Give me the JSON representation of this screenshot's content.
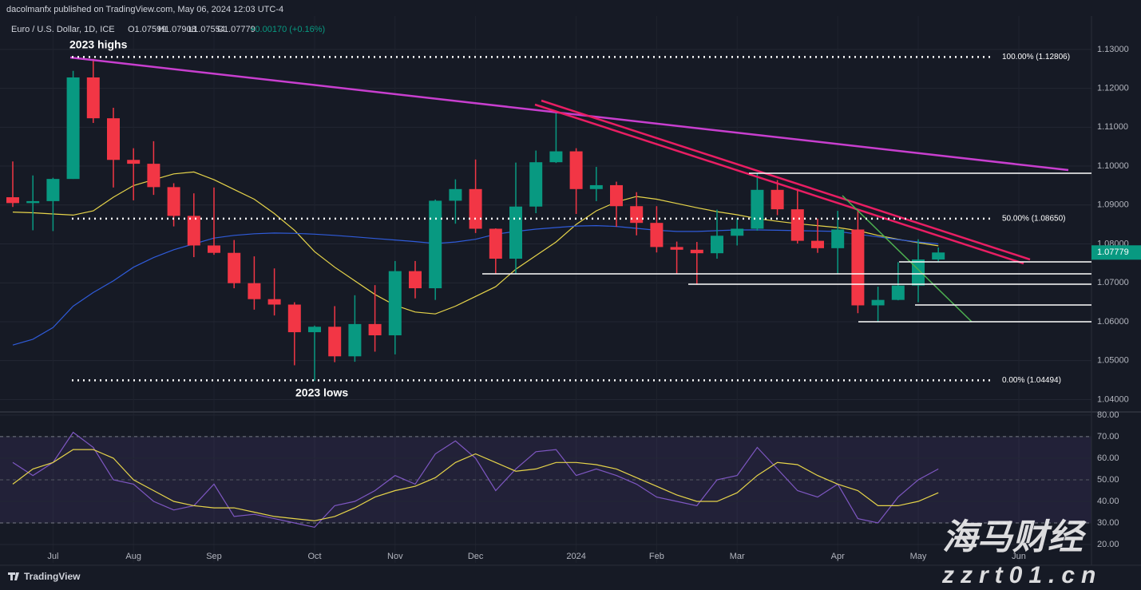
{
  "header": {
    "publisher": "dacolmanfx published on TradingView.com, May 06, 2024 12:03 UTC-4",
    "symbol": "Euro / U.S. Dollar, 1D, ICE",
    "ohlc": [
      "O1.07599",
      "H1.07908",
      "L1.07554",
      "C1.07779"
    ],
    "change": "+0.00170 (+0.16%)"
  },
  "footer": {
    "brand": "TradingView"
  },
  "watermark": {
    "main": "海马财经",
    "url": "zzrt01.cn"
  },
  "chart_data": [
    {
      "type": "candlestick",
      "up_color": "#089981",
      "down_color": "#f23645",
      "categories": [
        null,
        null,
        "Jul",
        null,
        null,
        null,
        "Aug",
        null,
        null,
        null,
        "Sep",
        null,
        null,
        null,
        null,
        "Oct",
        null,
        null,
        null,
        "Nov",
        null,
        null,
        null,
        "Dec",
        null,
        null,
        null,
        null,
        "2024",
        null,
        null,
        null,
        "Feb",
        null,
        null,
        null,
        "Mar",
        null,
        null,
        null,
        null,
        "Apr",
        null,
        null,
        null,
        "May",
        null,
        null,
        null,
        null,
        "Jun"
      ],
      "open": [
        1.092,
        1.0905,
        1.091,
        1.0967,
        1.1228,
        1.1123,
        1.1016,
        1.1006,
        1.0946,
        1.0872,
        1.0796,
        1.0777,
        1.0699,
        1.0658,
        1.0644,
        1.0573,
        1.0587,
        1.0511,
        1.0594,
        1.0565,
        1.073,
        1.0686,
        1.0911,
        1.0941,
        1.0839,
        1.0762,
        1.0896,
        1.101,
        1.1038,
        1.0941,
        1.0951,
        1.0897,
        1.0854,
        1.0792,
        1.0785,
        1.0776,
        1.0821,
        1.0839,
        1.0939,
        1.0889,
        1.0808,
        1.0789,
        1.0837,
        1.0642,
        1.0656,
        1.0693,
        1.07599,
        null,
        null,
        null,
        null
      ],
      "high": [
        1.1012,
        1.0976,
        1.097,
        1.1245,
        1.1276,
        1.115,
        1.1046,
        1.1064,
        1.0956,
        1.093,
        1.0945,
        1.081,
        1.0768,
        1.0737,
        1.065,
        1.059,
        1.064,
        1.0668,
        1.0694,
        1.0756,
        1.0756,
        1.0914,
        1.0966,
        1.1017,
        1.084,
        1.1009,
        1.104,
        1.114,
        1.1046,
        1.0998,
        1.096,
        1.0933,
        1.0897,
        1.0806,
        1.0805,
        1.0888,
        1.0866,
        1.0981,
        1.0964,
        1.0942,
        1.0865,
        1.0885,
        1.0885,
        1.069,
        1.0753,
        1.0812,
        1.07908,
        null,
        null,
        null,
        null
      ],
      "low": [
        1.0895,
        1.0835,
        1.0833,
        1.0967,
        1.1111,
        1.0945,
        1.0912,
        1.0926,
        1.0845,
        1.0766,
        1.0772,
        1.0686,
        1.0631,
        1.0616,
        1.0488,
        1.0448,
        1.0496,
        1.0497,
        1.0523,
        1.0516,
        1.066,
        1.0656,
        1.0852,
        1.0828,
        1.0723,
        1.0724,
        1.0879,
        1.1008,
        1.0877,
        1.091,
        1.0844,
        1.0822,
        1.0778,
        1.0722,
        1.0695,
        1.0762,
        1.0796,
        1.0834,
        1.0874,
        1.0801,
        1.0777,
        1.0724,
        1.0622,
        1.0601,
        1.0655,
        1.065,
        1.07554,
        null,
        null,
        null,
        null
      ],
      "close": [
        1.0905,
        1.091,
        1.0967,
        1.1228,
        1.1123,
        1.1016,
        1.1006,
        1.0946,
        1.0872,
        1.0796,
        1.0777,
        1.0699,
        1.0658,
        1.0644,
        1.0573,
        1.0587,
        1.0511,
        1.0594,
        1.0565,
        1.073,
        1.0686,
        1.0911,
        1.0941,
        1.0839,
        1.0762,
        1.0896,
        1.101,
        1.1038,
        1.0941,
        1.0951,
        1.0897,
        1.0854,
        1.0792,
        1.0785,
        1.0776,
        1.0821,
        1.0839,
        1.0939,
        1.0889,
        1.0808,
        1.0789,
        1.0837,
        1.0642,
        1.0656,
        1.0693,
        1.076,
        1.07779,
        null,
        null,
        null,
        null
      ],
      "lines": [
        {
          "color": "#e6d44a",
          "values": [
            1.0882,
            1.088,
            1.0877,
            1.0874,
            1.0885,
            1.092,
            1.095,
            1.0965,
            1.098,
            1.0985,
            1.0965,
            1.094,
            1.0915,
            1.0878,
            1.0835,
            1.078,
            1.074,
            1.0705,
            1.067,
            1.0642,
            1.0625,
            1.062,
            1.064,
            1.0665,
            1.069,
            1.0735,
            1.077,
            1.0805,
            1.085,
            1.0885,
            1.0908,
            1.0922,
            1.0915,
            1.0904,
            1.0893,
            1.0883,
            1.0875,
            1.0865,
            1.0858,
            1.0852,
            1.0847,
            1.0842,
            1.0834,
            1.0822,
            1.0812,
            1.0803,
            1.0795,
            null,
            null,
            null,
            null
          ]
        },
        {
          "color": "#2f5bd9",
          "values": [
            1.054,
            1.0555,
            1.0585,
            1.064,
            1.0675,
            1.0705,
            1.074,
            1.0765,
            1.0785,
            1.08,
            1.0815,
            1.0822,
            1.0826,
            1.0828,
            1.0827,
            1.0825,
            1.0822,
            1.0818,
            1.0814,
            1.081,
            1.0806,
            1.0801,
            1.0805,
            1.0812,
            1.0825,
            1.0832,
            1.0838,
            1.0842,
            1.0846,
            1.0847,
            1.0845,
            1.084,
            1.0835,
            1.0832,
            1.0832,
            1.0834,
            1.0836,
            1.0836,
            1.0835,
            1.0834,
            1.0833,
            1.0832,
            1.0825,
            1.0818,
            1.0811,
            1.0805,
            1.08,
            null,
            null,
            null,
            null
          ]
        }
      ],
      "annotations": [
        "2023 highs",
        "2023 lows"
      ],
      "fib_levels": [
        {
          "value": 1.12806,
          "label": "100.00% (1.12806)"
        },
        {
          "value": 1.0865,
          "label": "50.00% (1.08650)"
        },
        {
          "value": 1.04494,
          "label": "0.00% (1.04494)"
        }
      ],
      "last_price": {
        "value": 1.07779,
        "label": "1.07779"
      },
      "ylim": [
        1.037,
        1.1386
      ],
      "yticks": [
        {
          "value": 1.04,
          "label": "1.04000"
        },
        {
          "value": 1.05,
          "label": "1.05000"
        },
        {
          "value": 1.06,
          "label": "1.06000"
        },
        {
          "value": 1.07,
          "label": "1.07000"
        },
        {
          "value": 1.08,
          "label": "1.08000"
        },
        {
          "value": 1.09,
          "label": "1.09000"
        },
        {
          "value": 1.1,
          "label": "1.10000"
        },
        {
          "value": 1.11,
          "label": "1.11000"
        },
        {
          "value": 1.12,
          "label": "1.12000"
        },
        {
          "value": 1.13,
          "label": "1.13000"
        }
      ],
      "grid": true
    },
    {
      "type": "line",
      "series": [
        {
          "color": "#7e57c2",
          "values": [
            58,
            52,
            58,
            72,
            65,
            50,
            48,
            40,
            36,
            38,
            48,
            33,
            34,
            32,
            30,
            28,
            38,
            40,
            45,
            52,
            48,
            62,
            68,
            60,
            45,
            55,
            63,
            64,
            52,
            55,
            52,
            48,
            42,
            40,
            38,
            50,
            52,
            65,
            55,
            45,
            42,
            48,
            32,
            30,
            42,
            50,
            55,
            null,
            null,
            null,
            null
          ]
        },
        {
          "color": "#e6d44a",
          "values": [
            48,
            55,
            58,
            64,
            64,
            60,
            50,
            45,
            40,
            38,
            37,
            37,
            35,
            33,
            32,
            31,
            33,
            37,
            42,
            45,
            47,
            51,
            58,
            62,
            58,
            54,
            55,
            58,
            58,
            57,
            55,
            51,
            47,
            43,
            40,
            40,
            44,
            52,
            58,
            57,
            52,
            48,
            45,
            38,
            38,
            40,
            44,
            null,
            null,
            null,
            null
          ]
        }
      ],
      "band": [
        30,
        70
      ],
      "midline": 50,
      "ylim": [
        11.5,
        80.7
      ],
      "yticks": [
        {
          "value": 20,
          "label": "20.00"
        },
        {
          "value": 30,
          "label": "30.00"
        },
        {
          "value": 40,
          "label": "40.00"
        },
        {
          "value": 50,
          "label": "50.00"
        },
        {
          "value": 60,
          "label": "60.00"
        },
        {
          "value": 70,
          "label": "70.00"
        },
        {
          "value": 80,
          "label": "80.00"
        }
      ]
    }
  ]
}
